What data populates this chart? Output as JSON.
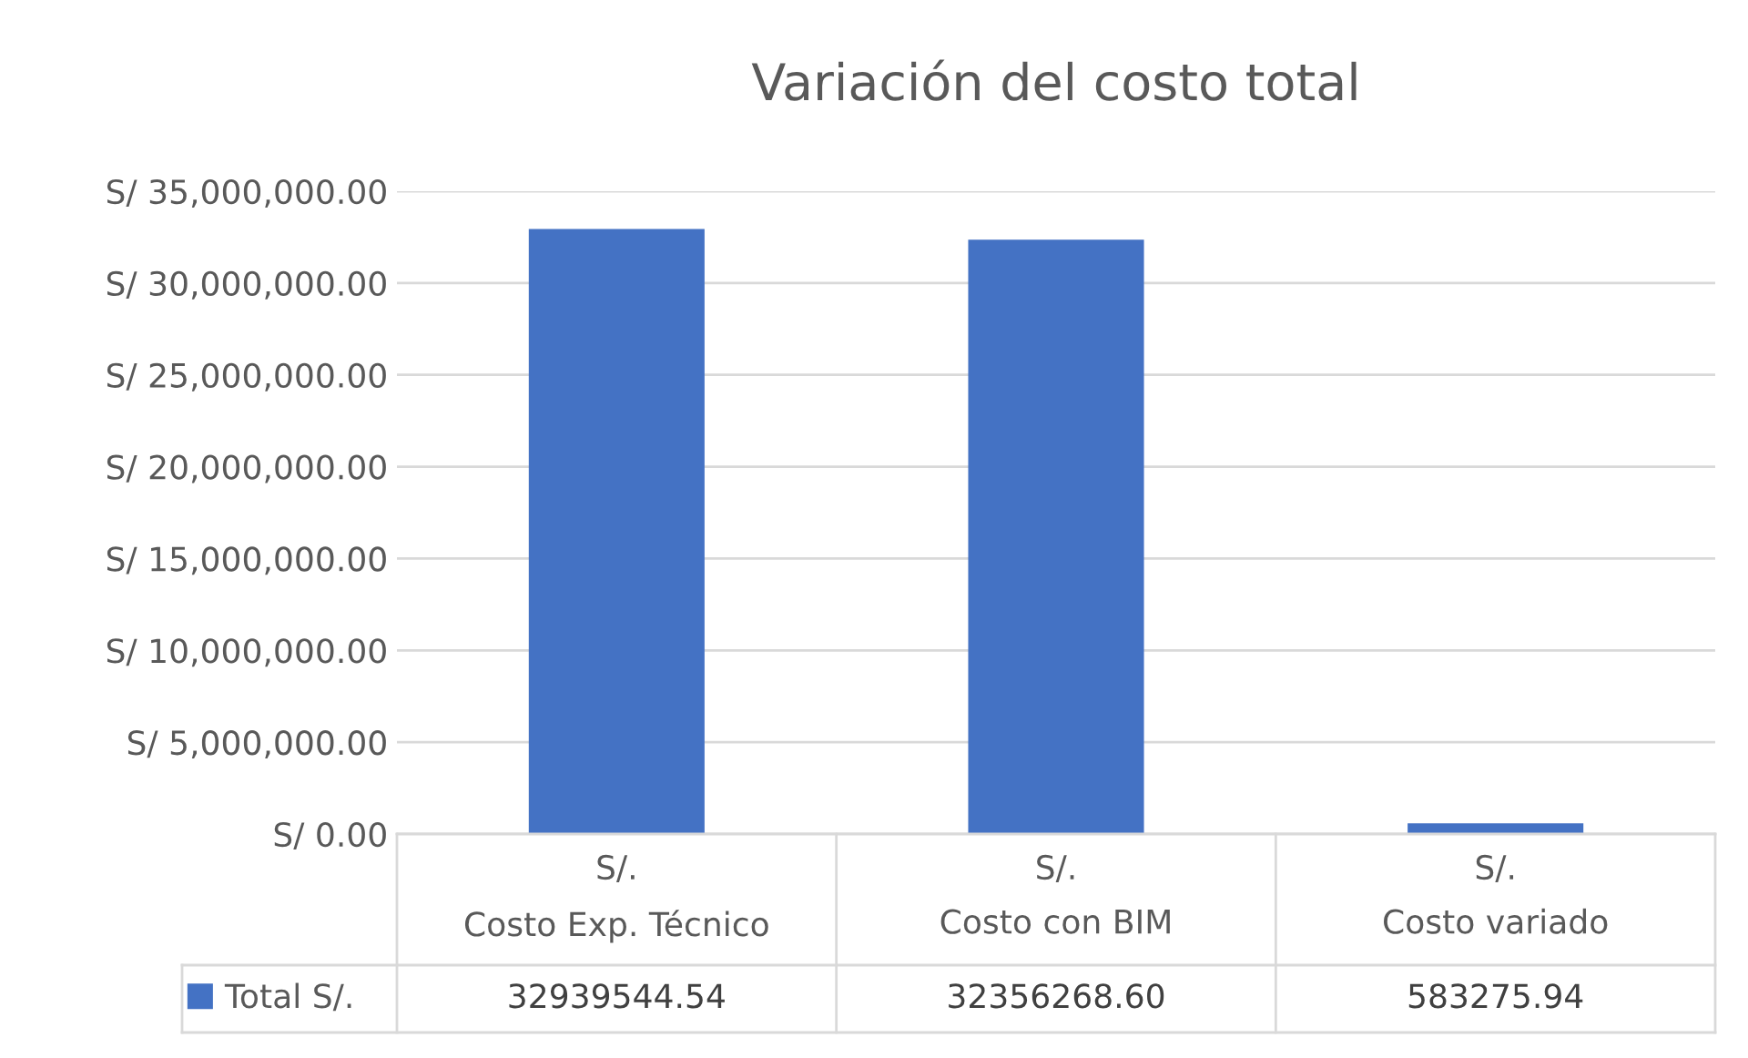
{
  "chart_data": {
    "type": "bar",
    "title": "Variación del costo total",
    "categories": [
      "S/.\nCosto Exp. Técnico",
      "S/.\nCosto con BIM",
      "S/.\nCosto variado"
    ],
    "series": [
      {
        "name": "Total S/.",
        "color": "#4472c4",
        "values": [
          32939544.54,
          32356268.6,
          583275.94
        ],
        "value_labels": [
          "32939544.54",
          "32356268.60",
          "583275.94"
        ]
      }
    ],
    "ylim": [
      0,
      35000000
    ],
    "yticks": [
      {
        "value": 0,
        "label": "S/ 0.00"
      },
      {
        "value": 5000000,
        "label": "S/ 5,000,000.00"
      },
      {
        "value": 10000000,
        "label": "S/ 10,000,000.00"
      },
      {
        "value": 15000000,
        "label": "S/ 15,000,000.00"
      },
      {
        "value": 20000000,
        "label": "S/ 20,000,000.00"
      },
      {
        "value": 25000000,
        "label": "S/ 25,000,000.00"
      },
      {
        "value": 30000000,
        "label": "S/ 30,000,000.00"
      },
      {
        "value": 35000000,
        "label": "S/ 35,000,000.00"
      }
    ],
    "grid": "y",
    "legend": "bottom"
  }
}
